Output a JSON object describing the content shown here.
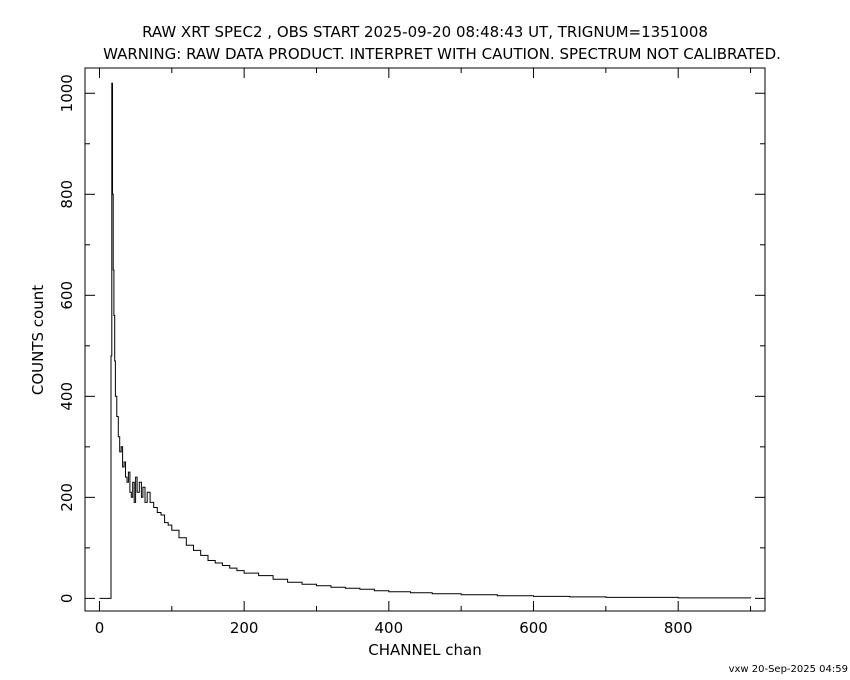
{
  "chart_data": {
    "type": "line",
    "title": "RAW XRT SPEC2 , OBS START 2025-09-20 08:48:43 UT, TRIGNUM=1351008",
    "subtitle": "WARNING: RAW DATA PRODUCT. INTERPRET WITH CAUTION. SPECTRUM NOT CALIBRATED.",
    "xlabel": "CHANNEL  chan",
    "ylabel": "COUNTS  count",
    "xlim": [
      -20,
      920
    ],
    "ylim": [
      -25,
      1050
    ],
    "xticks": [
      0,
      200,
      400,
      600,
      800
    ],
    "yticks": [
      0,
      200,
      400,
      600,
      800,
      1000
    ],
    "grid": false,
    "footer": "vxw 20-Sep-2025 04:59",
    "series": [
      {
        "x": [
          0,
          15,
          16,
          17,
          18,
          19,
          20,
          21,
          22,
          24,
          26,
          28,
          30,
          32,
          34,
          36,
          38,
          40,
          42,
          44,
          46,
          48,
          50,
          52,
          55,
          58,
          60,
          63,
          66,
          70,
          75,
          80,
          85,
          90,
          95,
          100,
          110,
          120,
          130,
          140,
          150,
          160,
          170,
          180,
          190,
          200,
          220,
          240,
          260,
          280,
          300,
          320,
          340,
          360,
          380,
          400,
          430,
          460,
          500,
          550,
          600,
          650,
          700,
          750,
          800,
          850,
          900
        ],
        "y": [
          0,
          0,
          480,
          1020,
          800,
          650,
          560,
          470,
          400,
          360,
          320,
          290,
          300,
          260,
          270,
          240,
          230,
          250,
          210,
          200,
          230,
          190,
          240,
          210,
          230,
          200,
          220,
          190,
          210,
          190,
          180,
          170,
          165,
          150,
          145,
          135,
          120,
          105,
          95,
          85,
          75,
          70,
          65,
          60,
          55,
          50,
          45,
          38,
          32,
          28,
          25,
          22,
          20,
          18,
          15,
          13,
          11,
          9,
          7,
          5,
          4,
          3,
          2,
          2,
          1,
          1,
          0
        ]
      }
    ]
  }
}
